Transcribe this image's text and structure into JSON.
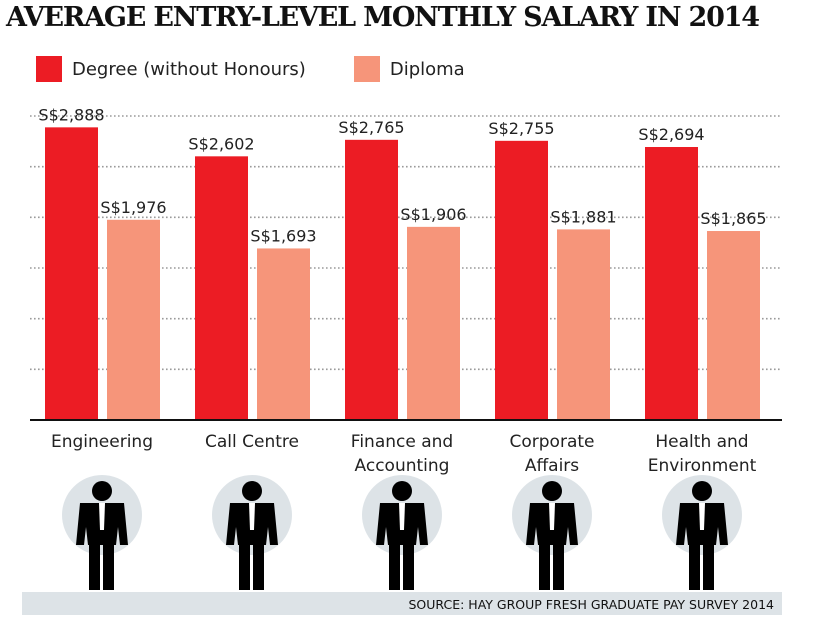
{
  "chart_data": {
    "type": "bar",
    "title": "AVERAGE ENTRY-LEVEL MONTHLY SALARY IN 2014",
    "categories": [
      "Engineering",
      "Call Centre",
      "Finance and Accounting",
      "Corporate Affairs",
      "Health and Environment"
    ],
    "category_lines": [
      [
        "Engineering"
      ],
      [
        "Call Centre"
      ],
      [
        "Finance and",
        "Accounting"
      ],
      [
        "Corporate",
        "Affairs"
      ],
      [
        "Health and",
        "Environment"
      ]
    ],
    "series": [
      {
        "name": "Degree (without Honours)",
        "values": [
          2888,
          2602,
          2765,
          2755,
          2694
        ],
        "labels": [
          "S$2,888",
          "S$2,602",
          "S$2,765",
          "S$2,755",
          "S$2,694"
        ],
        "color": "#ec1c24"
      },
      {
        "name": "Diploma",
        "values": [
          1976,
          1693,
          1906,
          1881,
          1865
        ],
        "labels": [
          "S$1,976",
          "S$1,693",
          "S$1,906",
          "S$1,881",
          "S$1,865"
        ],
        "color": "#f6957a"
      }
    ],
    "ylim": [
      0,
      3000
    ],
    "grid": true,
    "grid_step": 500,
    "legend": "top-left",
    "xlabel": "",
    "ylabel": ""
  },
  "source": "SOURCE: HAY GROUP FRESH GRADUATE PAY SURVEY 2014",
  "icons": [
    "engineer-figure-icon",
    "call-centre-figure-icon",
    "finance-figure-icon",
    "corporate-figure-icon",
    "health-figure-icon"
  ]
}
